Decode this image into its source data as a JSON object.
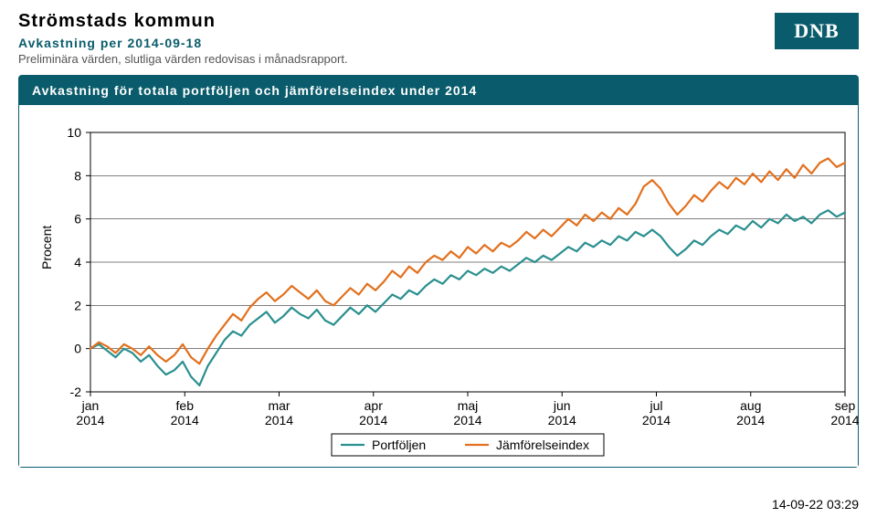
{
  "header": {
    "title": "Strömstads kommun",
    "subtitle": "Avkastning per 2014-09-18",
    "note": "Preliminära värden, slutliga värden redovisas i månadsrapport.",
    "logo_text": "DNB"
  },
  "panel": {
    "title": "Avkastning för totala portföljen och jämförelseindex under 2014"
  },
  "chart": {
    "type": "line",
    "ylabel": "Procent",
    "ylim": [
      -2,
      10
    ],
    "ytick_step": 2,
    "xticks": [
      "jan\n2014",
      "feb\n2014",
      "mar\n2014",
      "apr\n2014",
      "maj\n2014",
      "jun\n2014",
      "jul\n2014",
      "aug\n2014",
      "sep\n2014"
    ],
    "background_color": "#ffffff",
    "axis_color": "#000000",
    "grid_color": "#000000",
    "line_width": 2.2,
    "label_fontsize": 14,
    "tick_fontsize": 14,
    "legend": {
      "items": [
        {
          "label": "Portföljen",
          "color": "#2a8f8f"
        },
        {
          "label": "Jämförelseindex",
          "color": "#e2701d"
        }
      ],
      "box_border": "#000000",
      "box_bg": "#ffffff"
    },
    "series": [
      {
        "name": "Portföljen",
        "color": "#2a8f8f",
        "y": [
          0.0,
          0.2,
          -0.1,
          -0.4,
          0.0,
          -0.2,
          -0.6,
          -0.3,
          -0.8,
          -1.2,
          -1.0,
          -0.6,
          -1.3,
          -1.7,
          -0.8,
          -0.2,
          0.4,
          0.8,
          0.6,
          1.1,
          1.4,
          1.7,
          1.2,
          1.5,
          1.9,
          1.6,
          1.4,
          1.8,
          1.3,
          1.1,
          1.5,
          1.9,
          1.6,
          2.0,
          1.7,
          2.1,
          2.5,
          2.3,
          2.7,
          2.5,
          2.9,
          3.2,
          3.0,
          3.4,
          3.2,
          3.6,
          3.4,
          3.7,
          3.5,
          3.8,
          3.6,
          3.9,
          4.2,
          4.0,
          4.3,
          4.1,
          4.4,
          4.7,
          4.5,
          4.9,
          4.7,
          5.0,
          4.8,
          5.2,
          5.0,
          5.4,
          5.2,
          5.5,
          5.2,
          4.7,
          4.3,
          4.6,
          5.0,
          4.8,
          5.2,
          5.5,
          5.3,
          5.7,
          5.5,
          5.9,
          5.6,
          6.0,
          5.8,
          6.2,
          5.9,
          6.1,
          5.8,
          6.2,
          6.4,
          6.1,
          6.3
        ]
      },
      {
        "name": "Jämförelseindex",
        "color": "#e2701d",
        "y": [
          0.0,
          0.3,
          0.1,
          -0.2,
          0.2,
          0.0,
          -0.3,
          0.1,
          -0.3,
          -0.6,
          -0.3,
          0.2,
          -0.4,
          -0.7,
          0.0,
          0.6,
          1.1,
          1.6,
          1.3,
          1.9,
          2.3,
          2.6,
          2.2,
          2.5,
          2.9,
          2.6,
          2.3,
          2.7,
          2.2,
          2.0,
          2.4,
          2.8,
          2.5,
          3.0,
          2.7,
          3.1,
          3.6,
          3.3,
          3.8,
          3.5,
          4.0,
          4.3,
          4.1,
          4.5,
          4.2,
          4.7,
          4.4,
          4.8,
          4.5,
          4.9,
          4.7,
          5.0,
          5.4,
          5.1,
          5.5,
          5.2,
          5.6,
          6.0,
          5.7,
          6.2,
          5.9,
          6.3,
          6.0,
          6.5,
          6.2,
          6.7,
          7.5,
          7.8,
          7.4,
          6.7,
          6.2,
          6.6,
          7.1,
          6.8,
          7.3,
          7.7,
          7.4,
          7.9,
          7.6,
          8.1,
          7.7,
          8.2,
          7.8,
          8.3,
          7.9,
          8.5,
          8.1,
          8.6,
          8.8,
          8.4,
          8.6
        ]
      }
    ]
  },
  "timestamp": "14-09-22 03:29"
}
